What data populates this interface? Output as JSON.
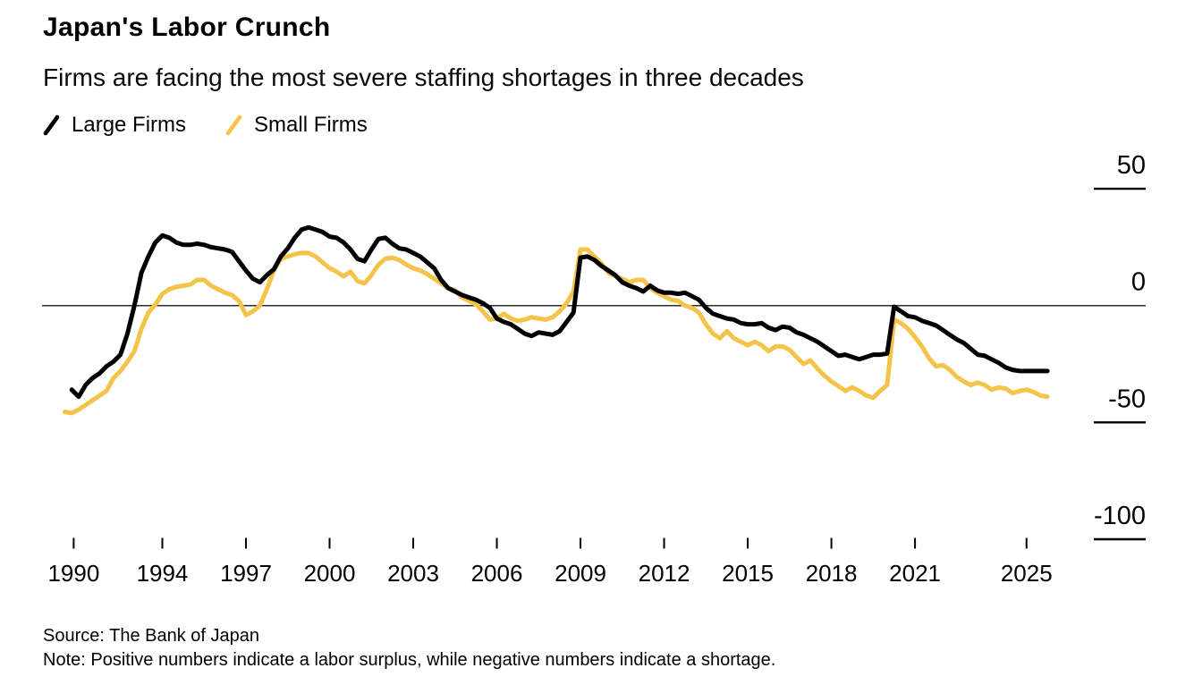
{
  "footer": {
    "source": "Source: The Bank of Japan",
    "note": "Note: Positive numbers indicate a labor surplus, while negative numbers indicate a shortage."
  },
  "chart_data": {
    "type": "line",
    "title": "Japan's Labor Crunch",
    "subtitle": "Firms are facing the most severe staffing shortages in three decades",
    "xlabel": "",
    "ylabel": "",
    "xlim": [
      1990.3,
      2026.3
    ],
    "ylim": [
      -110,
      55
    ],
    "grid": "horizontal, right-edge tick segments, zero baseline across plot",
    "legend_position": "top-left",
    "y_ticks": [
      {
        "label": "50",
        "value": 50
      },
      {
        "label": "0",
        "value": 0
      },
      {
        "label": "-50",
        "value": -50
      },
      {
        "label": "-100",
        "value": -100
      }
    ],
    "x_ticks": [
      {
        "label": "1990",
        "at": 1990.82
      },
      {
        "label": "1994",
        "at": 1994
      },
      {
        "label": "1997",
        "at": 1997
      },
      {
        "label": "2000",
        "at": 2000
      },
      {
        "label": "2003",
        "at": 2003
      },
      {
        "label": "2006",
        "at": 2006
      },
      {
        "label": "2009",
        "at": 2009
      },
      {
        "label": "2012",
        "at": 2012
      },
      {
        "label": "2015",
        "at": 2015
      },
      {
        "label": "2018",
        "at": 2018
      },
      {
        "label": "2021",
        "at": 2021
      },
      {
        "label": "2025",
        "at": 2025
      }
    ],
    "series": [
      {
        "name": "Large Firms",
        "color": "#000000",
        "points": [
          [
            1990.75,
            -36
          ],
          [
            1991,
            -39
          ],
          [
            1991.25,
            -34
          ],
          [
            1991.5,
            -31
          ],
          [
            1991.75,
            -29
          ],
          [
            1992,
            -26
          ],
          [
            1992.25,
            -24
          ],
          [
            1992.5,
            -21
          ],
          [
            1992.75,
            -12
          ],
          [
            1993,
            0
          ],
          [
            1993.25,
            14
          ],
          [
            1993.5,
            21
          ],
          [
            1993.75,
            27
          ],
          [
            1994,
            30
          ],
          [
            1994.25,
            29
          ],
          [
            1994.5,
            27
          ],
          [
            1994.75,
            26
          ],
          [
            1995,
            26
          ],
          [
            1995.25,
            26.5
          ],
          [
            1995.5,
            26
          ],
          [
            1995.75,
            25
          ],
          [
            1996,
            24.5
          ],
          [
            1996.25,
            24
          ],
          [
            1996.5,
            23
          ],
          [
            1996.75,
            19
          ],
          [
            1997,
            15
          ],
          [
            1997.25,
            11.5
          ],
          [
            1997.5,
            10
          ],
          [
            1997.75,
            13
          ],
          [
            1998,
            15.5
          ],
          [
            1998.25,
            21
          ],
          [
            1998.5,
            24.5
          ],
          [
            1998.75,
            29
          ],
          [
            1999,
            32.5
          ],
          [
            1999.25,
            33.5
          ],
          [
            1999.5,
            32.5
          ],
          [
            1999.75,
            31.5
          ],
          [
            2000,
            29.5
          ],
          [
            2000.25,
            29
          ],
          [
            2000.5,
            27
          ],
          [
            2000.75,
            24
          ],
          [
            2001,
            20
          ],
          [
            2001.25,
            19
          ],
          [
            2001.5,
            24
          ],
          [
            2001.75,
            28.5
          ],
          [
            2002,
            29
          ],
          [
            2002.25,
            26.5
          ],
          [
            2002.5,
            24.5
          ],
          [
            2002.75,
            24
          ],
          [
            2003,
            22.5
          ],
          [
            2003.25,
            21
          ],
          [
            2003.5,
            18.5
          ],
          [
            2003.75,
            16
          ],
          [
            2004,
            11
          ],
          [
            2004.25,
            7.5
          ],
          [
            2004.5,
            6
          ],
          [
            2004.75,
            4.5
          ],
          [
            2005,
            3.5
          ],
          [
            2005.25,
            2.5
          ],
          [
            2005.5,
            1
          ],
          [
            2005.75,
            -1
          ],
          [
            2006,
            -5.5
          ],
          [
            2006.25,
            -7
          ],
          [
            2006.5,
            -8
          ],
          [
            2006.75,
            -10
          ],
          [
            2007,
            -12
          ],
          [
            2007.25,
            -13
          ],
          [
            2007.5,
            -11.5
          ],
          [
            2007.75,
            -12
          ],
          [
            2008,
            -12.5
          ],
          [
            2008.25,
            -11
          ],
          [
            2008.5,
            -7
          ],
          [
            2008.75,
            -3
          ],
          [
            2009,
            20.5
          ],
          [
            2009.25,
            21
          ],
          [
            2009.5,
            19.5
          ],
          [
            2009.75,
            17
          ],
          [
            2010,
            15
          ],
          [
            2010.25,
            13
          ],
          [
            2010.5,
            10
          ],
          [
            2010.75,
            8.5
          ],
          [
            2011,
            7.5
          ],
          [
            2011.25,
            6
          ],
          [
            2011.5,
            8.5
          ],
          [
            2011.75,
            6.5
          ],
          [
            2012,
            5.5
          ],
          [
            2012.25,
            5.5
          ],
          [
            2012.5,
            5
          ],
          [
            2012.75,
            5.5
          ],
          [
            2013,
            4
          ],
          [
            2013.25,
            2.5
          ],
          [
            2013.5,
            -1
          ],
          [
            2013.75,
            -3.5
          ],
          [
            2014,
            -4.5
          ],
          [
            2014.25,
            -5.5
          ],
          [
            2014.5,
            -6
          ],
          [
            2014.75,
            -7.5
          ],
          [
            2015,
            -8
          ],
          [
            2015.25,
            -8
          ],
          [
            2015.5,
            -7.5
          ],
          [
            2015.75,
            -9.5
          ],
          [
            2016,
            -10.5
          ],
          [
            2016.25,
            -9
          ],
          [
            2016.5,
            -9.5
          ],
          [
            2016.75,
            -11.5
          ],
          [
            2017,
            -12.5
          ],
          [
            2017.25,
            -14
          ],
          [
            2017.5,
            -15.5
          ],
          [
            2017.75,
            -17.5
          ],
          [
            2018,
            -19.5
          ],
          [
            2018.25,
            -21.5
          ],
          [
            2018.5,
            -21
          ],
          [
            2018.75,
            -22
          ],
          [
            2019,
            -23
          ],
          [
            2019.25,
            -22
          ],
          [
            2019.5,
            -21
          ],
          [
            2019.75,
            -21
          ],
          [
            2020,
            -20.5
          ],
          [
            2020.25,
            -0.5
          ],
          [
            2020.5,
            -2.5
          ],
          [
            2020.75,
            -4.5
          ],
          [
            2021,
            -5
          ],
          [
            2021.25,
            -6.5
          ],
          [
            2021.5,
            -7.5
          ],
          [
            2021.75,
            -8.5
          ],
          [
            2022,
            -10.5
          ],
          [
            2022.25,
            -12.5
          ],
          [
            2022.5,
            -14.5
          ],
          [
            2022.75,
            -16
          ],
          [
            2023,
            -18.5
          ],
          [
            2023.25,
            -21
          ],
          [
            2023.5,
            -21.5
          ],
          [
            2023.75,
            -23
          ],
          [
            2024,
            -24.5
          ],
          [
            2024.25,
            -26.5
          ],
          [
            2024.5,
            -27.5
          ],
          [
            2024.75,
            -28
          ],
          [
            2025,
            -28
          ],
          [
            2025.25,
            -28
          ],
          [
            2025.5,
            -28
          ],
          [
            2025.75,
            -28
          ]
        ]
      },
      {
        "name": "Small Firms",
        "color": "#F4C34A",
        "points": [
          [
            1990.5,
            -45.5
          ],
          [
            1990.75,
            -46
          ],
          [
            1991,
            -44.5
          ],
          [
            1991.25,
            -42.5
          ],
          [
            1991.5,
            -40.5
          ],
          [
            1991.75,
            -38.5
          ],
          [
            1992,
            -36.5
          ],
          [
            1992.25,
            -31
          ],
          [
            1992.5,
            -28
          ],
          [
            1992.75,
            -24
          ],
          [
            1993,
            -19.5
          ],
          [
            1993.25,
            -10
          ],
          [
            1993.5,
            -3
          ],
          [
            1993.75,
            0.5
          ],
          [
            1994,
            5
          ],
          [
            1994.25,
            7
          ],
          [
            1994.5,
            8
          ],
          [
            1994.75,
            8.5
          ],
          [
            1995,
            9
          ],
          [
            1995.25,
            11
          ],
          [
            1995.5,
            11
          ],
          [
            1995.75,
            8.5
          ],
          [
            1996,
            7
          ],
          [
            1996.25,
            5.5
          ],
          [
            1996.5,
            4.5
          ],
          [
            1996.75,
            2
          ],
          [
            1997,
            -4
          ],
          [
            1997.25,
            -2.5
          ],
          [
            1997.5,
            0
          ],
          [
            1997.75,
            7
          ],
          [
            1998,
            15
          ],
          [
            1998.25,
            20
          ],
          [
            1998.5,
            21
          ],
          [
            1998.75,
            22
          ],
          [
            1999,
            22.5
          ],
          [
            1999.25,
            22.5
          ],
          [
            1999.5,
            21
          ],
          [
            1999.75,
            18.5
          ],
          [
            2000,
            16
          ],
          [
            2000.25,
            14.5
          ],
          [
            2000.5,
            12.5
          ],
          [
            2000.75,
            14.5
          ],
          [
            2001,
            10.5
          ],
          [
            2001.25,
            9.5
          ],
          [
            2001.5,
            13
          ],
          [
            2001.75,
            17.5
          ],
          [
            2002,
            20
          ],
          [
            2002.25,
            20.5
          ],
          [
            2002.5,
            19.5
          ],
          [
            2002.75,
            17.5
          ],
          [
            2003,
            16
          ],
          [
            2003.25,
            15
          ],
          [
            2003.5,
            13.5
          ],
          [
            2003.75,
            11.5
          ],
          [
            2004,
            9.5
          ],
          [
            2004.25,
            7.5
          ],
          [
            2004.5,
            6.5
          ],
          [
            2004.75,
            3.5
          ],
          [
            2005,
            2
          ],
          [
            2005.25,
            0.5
          ],
          [
            2005.5,
            -2.5
          ],
          [
            2005.75,
            -6
          ],
          [
            2006,
            -5.5
          ],
          [
            2006.25,
            -3.5
          ],
          [
            2006.5,
            -5.5
          ],
          [
            2006.75,
            -6.5
          ],
          [
            2007,
            -6
          ],
          [
            2007.25,
            -5
          ],
          [
            2007.5,
            -5.5
          ],
          [
            2007.75,
            -6
          ],
          [
            2008,
            -5
          ],
          [
            2008.25,
            -2.5
          ],
          [
            2008.5,
            1
          ],
          [
            2008.75,
            6
          ],
          [
            2009,
            24
          ],
          [
            2009.25,
            24
          ],
          [
            2009.5,
            21
          ],
          [
            2009.75,
            18
          ],
          [
            2010,
            14
          ],
          [
            2010.25,
            12.5
          ],
          [
            2010.5,
            11.5
          ],
          [
            2010.75,
            10
          ],
          [
            2011,
            11
          ],
          [
            2011.25,
            11
          ],
          [
            2011.5,
            7.5
          ],
          [
            2011.75,
            5.5
          ],
          [
            2012,
            4
          ],
          [
            2012.25,
            2.5
          ],
          [
            2012.5,
            2
          ],
          [
            2012.75,
            0
          ],
          [
            2013,
            -1
          ],
          [
            2013.25,
            -3
          ],
          [
            2013.5,
            -8
          ],
          [
            2013.75,
            -12
          ],
          [
            2014,
            -14
          ],
          [
            2014.25,
            -11
          ],
          [
            2014.5,
            -14
          ],
          [
            2014.75,
            -15.5
          ],
          [
            2015,
            -17
          ],
          [
            2015.25,
            -15.5
          ],
          [
            2015.5,
            -17
          ],
          [
            2015.75,
            -19.5
          ],
          [
            2016,
            -17.5
          ],
          [
            2016.25,
            -17.5
          ],
          [
            2016.5,
            -19
          ],
          [
            2016.75,
            -22
          ],
          [
            2017,
            -25
          ],
          [
            2017.25,
            -23.5
          ],
          [
            2017.5,
            -27
          ],
          [
            2017.75,
            -30
          ],
          [
            2018,
            -32.5
          ],
          [
            2018.25,
            -34.5
          ],
          [
            2018.5,
            -36.5
          ],
          [
            2018.75,
            -35
          ],
          [
            2019,
            -36.5
          ],
          [
            2019.25,
            -38.5
          ],
          [
            2019.5,
            -39.5
          ],
          [
            2019.75,
            -36.5
          ],
          [
            2020,
            -34
          ],
          [
            2020.25,
            -6
          ],
          [
            2020.5,
            -7.5
          ],
          [
            2020.75,
            -10
          ],
          [
            2021,
            -13.5
          ],
          [
            2021.25,
            -17.5
          ],
          [
            2021.5,
            -22.5
          ],
          [
            2021.75,
            -26
          ],
          [
            2022,
            -25.5
          ],
          [
            2022.25,
            -27.5
          ],
          [
            2022.5,
            -30.5
          ],
          [
            2022.75,
            -32.5
          ],
          [
            2023,
            -34
          ],
          [
            2023.25,
            -33
          ],
          [
            2023.5,
            -34
          ],
          [
            2023.75,
            -36
          ],
          [
            2024,
            -35
          ],
          [
            2024.25,
            -35.5
          ],
          [
            2024.5,
            -37.5
          ],
          [
            2024.75,
            -36.5
          ],
          [
            2025,
            -36
          ],
          [
            2025.25,
            -37
          ],
          [
            2025.5,
            -38.5
          ],
          [
            2025.75,
            -39
          ]
        ]
      }
    ]
  }
}
